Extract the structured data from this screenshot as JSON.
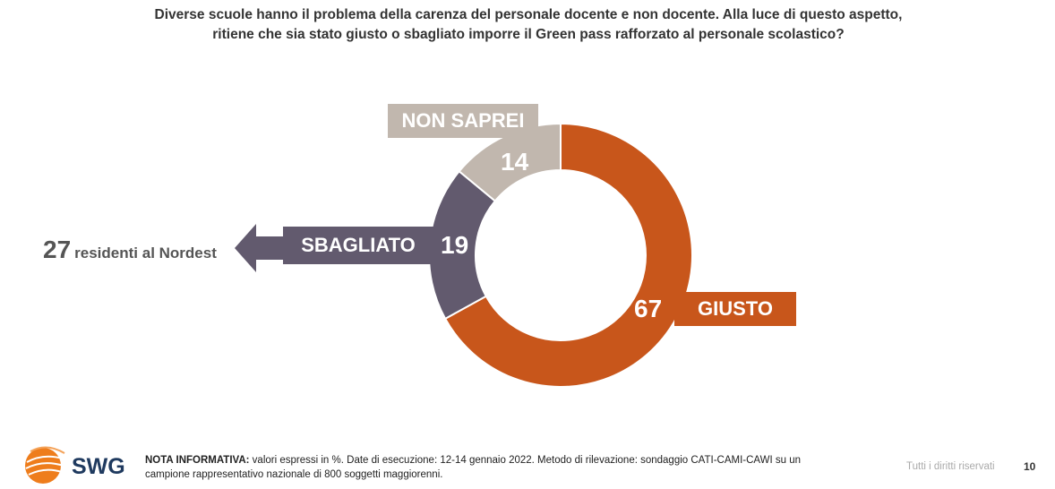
{
  "title_lines": [
    "Diverse scuole hanno il problema della carenza del personale docente e non docente. Alla luce di questo aspetto,",
    "ritiene che sia stato giusto o sbagliato imporre il Green pass rafforzato al personale scolastico?"
  ],
  "chart_data": {
    "type": "pie",
    "donut": true,
    "slices": [
      {
        "label": "GIUSTO",
        "value": 67,
        "color": "#c8561b"
      },
      {
        "label": "SBAGLIATO",
        "value": 19,
        "color": "#625a6e"
      },
      {
        "label": "NON SAPREI",
        "value": 14,
        "color": "#c1b7ae"
      }
    ],
    "title": "Diverse scuole hanno il problema della carenza del personale docente e non docente. Alla luce di questo aspetto, ritiene che sia stato giusto o sbagliato imporre il Green pass rafforzato al personale scolastico?"
  },
  "labels": {
    "giusto": "GIUSTO",
    "giusto_value": "67",
    "sbagliato": "SBAGLIATO",
    "sbagliato_value": "19",
    "nonsaprei": "NON SAPREI",
    "nonsaprei_value": "14"
  },
  "side_note": {
    "value": "27",
    "text": "residenti al Nordest"
  },
  "footer": {
    "logo_text": "SWG",
    "note_label": "NOTA INFORMATIVA:",
    "note_text": " valori espressi in %. Date di esecuzione: 12-14 gennaio 2022. Metodo di rilevazione: sondaggio CATI-CAMI-CAWI su un campione rappresentativo nazionale di 800 soggetti maggiorenni.",
    "rights": "Tutti i diritti riservati",
    "page_number": "10"
  },
  "colors": {
    "giusto": "#c8561b",
    "sbagliato": "#625a6e",
    "nonsaprei": "#c1b7ae",
    "logo_orange": "#ee7d1c",
    "logo_text": "#1f3a5f"
  }
}
